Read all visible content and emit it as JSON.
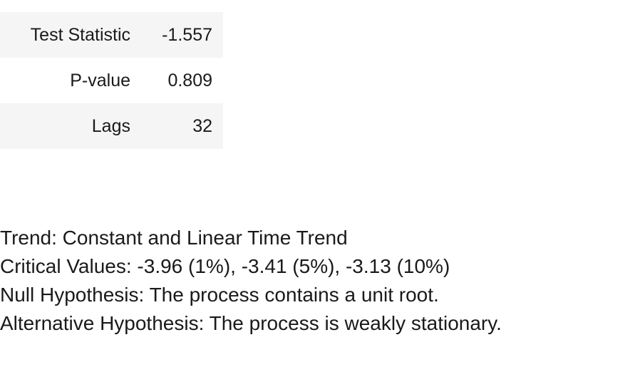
{
  "stats_table": {
    "rows": [
      {
        "label": "Test Statistic",
        "value": "-1.557"
      },
      {
        "label": "P-value",
        "value": "0.809"
      },
      {
        "label": "Lags",
        "value": "32"
      }
    ]
  },
  "summary": {
    "trend": "Trend: Constant and Linear Time Trend",
    "critical_values": "Critical Values: -3.96 (1%), -3.41 (5%), -3.13 (10%)",
    "null_hypothesis": "Null Hypothesis: The process contains a unit root.",
    "alternative_hypothesis": "Alternative Hypothesis: The process is weakly stationary."
  }
}
